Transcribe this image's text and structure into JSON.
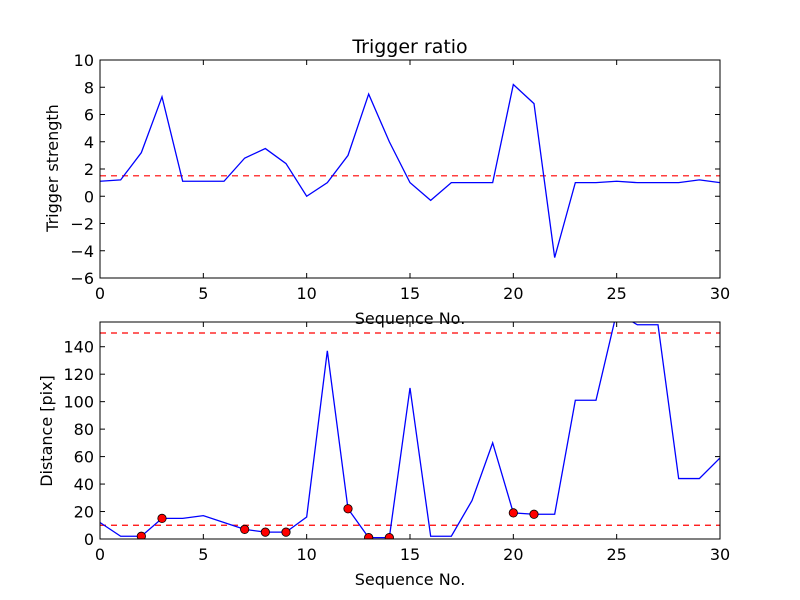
{
  "chart_data": [
    {
      "type": "line",
      "title": "Trigger ratio",
      "xlabel": "Sequence No.",
      "ylabel": "Trigger strength",
      "xlim": [
        0,
        30
      ],
      "ylim": [
        -6,
        10
      ],
      "xticks": [
        0,
        5,
        10,
        15,
        20,
        25,
        30
      ],
      "yticks": [
        -6,
        -4,
        -2,
        0,
        2,
        4,
        6,
        8,
        10
      ],
      "x": [
        0,
        1,
        2,
        3,
        4,
        5,
        6,
        7,
        8,
        9,
        10,
        11,
        12,
        13,
        14,
        15,
        16,
        17,
        18,
        19,
        20,
        21,
        22,
        23,
        24,
        25,
        26,
        27,
        28,
        29,
        30
      ],
      "series": [
        {
          "color": "#0000ff",
          "values": [
            1.1,
            1.2,
            3.2,
            7.3,
            1.1,
            1.1,
            1.1,
            2.8,
            3.5,
            2.4,
            0.0,
            1.0,
            3.0,
            7.5,
            4.0,
            1.0,
            -0.3,
            1.0,
            1.0,
            1.0,
            8.2,
            6.8,
            -4.5,
            1.0,
            1.0,
            1.1,
            1.0,
            1.0,
            1.0,
            1.2,
            1.0
          ]
        }
      ],
      "threshold": {
        "value": 1.5,
        "color": "#ff0000",
        "style": "dashed"
      },
      "grid": false
    },
    {
      "type": "line",
      "title": "",
      "xlabel": "Sequence No.",
      "ylabel": "Distance [pix]",
      "xlim": [
        0,
        30
      ],
      "ylim": [
        0,
        158
      ],
      "xticks": [
        0,
        5,
        10,
        15,
        20,
        25,
        30
      ],
      "yticks": [
        0,
        20,
        40,
        60,
        80,
        100,
        120,
        140
      ],
      "x": [
        0,
        1,
        2,
        3,
        4,
        5,
        6,
        7,
        8,
        9,
        10,
        11,
        12,
        13,
        14,
        15,
        16,
        17,
        18,
        19,
        20,
        21,
        22,
        23,
        24,
        25,
        26,
        27,
        28,
        29,
        30
      ],
      "series": [
        {
          "color": "#0000ff",
          "values": [
            12,
            2,
            2,
            15,
            15,
            17,
            12,
            7,
            5,
            5,
            16,
            137,
            22,
            1,
            1,
            110,
            2,
            2,
            28,
            70,
            19,
            18,
            18,
            101,
            101,
            165,
            156,
            156,
            44,
            44,
            59
          ]
        }
      ],
      "markers": {
        "color": "#ff0000",
        "points": [
          [
            2,
            2
          ],
          [
            3,
            15
          ],
          [
            7,
            7
          ],
          [
            8,
            5
          ],
          [
            9,
            5
          ],
          [
            12,
            22
          ],
          [
            13,
            1
          ],
          [
            14,
            1
          ],
          [
            20,
            19
          ],
          [
            21,
            18
          ]
        ]
      },
      "thresholds": [
        {
          "value": 10,
          "color": "#ff0000",
          "style": "dashed"
        },
        {
          "value": 150,
          "color": "#ff0000",
          "style": "dashed"
        }
      ],
      "grid": false
    }
  ]
}
